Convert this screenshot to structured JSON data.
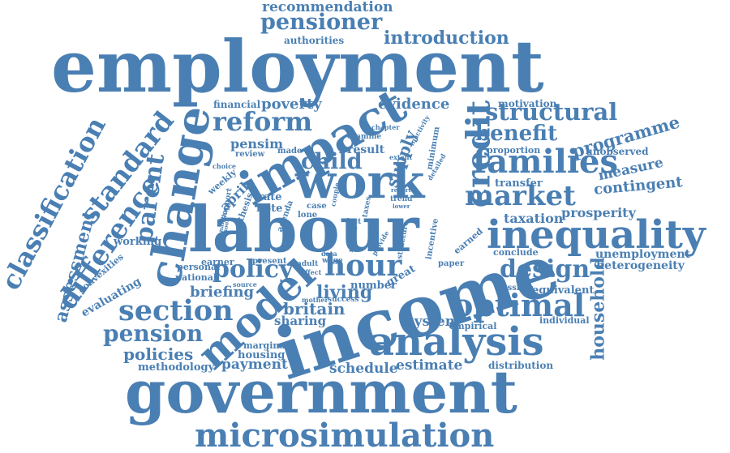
{
  "word_color": "#4a7fb3",
  "words": {
    "recommendation": "recommendation",
    "pensioner": "pensioner",
    "authorities": "authorities",
    "introduction": "introduction",
    "employment": "employment",
    "financial": "financial",
    "poverty": "poverty",
    "evidence": "evidence",
    "motivation": "motivation",
    "structural": "structural",
    "reform": "reform",
    "impact": "impact",
    "credit": "credit",
    "benefit": "benefit",
    "programme": "programme",
    "change": "change",
    "pensim": "pensim",
    "families": "families",
    "classification": "classification",
    "standard": "standard",
    "result": "result",
    "supply": "supply",
    "proportion": "proportion",
    "unobserved": "unobserved",
    "review": "review",
    "child": "child",
    "measure": "measure",
    "choice": "choice",
    "weekly": "weekly",
    "transfer": "transfer",
    "contingent": "contingent",
    "work": "work",
    "market": "market",
    "parent": "parent",
    "april": "april",
    "thesis": "thesis",
    "rate": "rate",
    "note": "note",
    "prosperity": "prosperity",
    "taxation": "taxation",
    "difference": "difference",
    "labour": "labour",
    "inequality": "inequality",
    "assessment": "assessment",
    "working": "working",
    "earned": "earned",
    "conclude": "conclude",
    "unemployment": "unemployment",
    "heterogeneity": "heterogeneity",
    "convexities": "convexities",
    "evaluating": "evaluating",
    "personal": "personal",
    "earner": "earner",
    "present": "present",
    "hour": "hour",
    "policy": "policy",
    "design": "design",
    "national": "national",
    "briefing": "briefing",
    "living": "living",
    "number": "number",
    "great": "great",
    "possible": "possible",
    "equivalent": "equivalent",
    "section": "section",
    "model": "model",
    "britain": "britain",
    "optimal": "optimal",
    "income": "income",
    "household": "household",
    "pension": "pension",
    "sharing": "sharing",
    "system": "system",
    "empirical": "empirical",
    "individual": "individual",
    "analysis": "analysis",
    "policies": "policies",
    "marginal": "marginal",
    "housing": "housing",
    "methodology": "methodology",
    "payment": "payment",
    "schedule": "schedule",
    "estimate": "estimate",
    "distribution": "distribution",
    "government": "government",
    "microsimulation": "microsimulation",
    "examine": "examine",
    "chapter": "chapter",
    "inactivity": "inactivity",
    "minimum": "minimum",
    "made": "made",
    "extent": "extent",
    "detailed": "detailed",
    "report": "report",
    "trend": "trend",
    "lower": "lower",
    "case": "case",
    "lone": "lone",
    "agenda": "agenda",
    "fact": "fact",
    "nation": "nation",
    "provide": "provide",
    "structure": "structure",
    "incentive": "incentive",
    "data": "data",
    "wage": "wage",
    "adult": "adult",
    "effect": "effect",
    "paper": "paper",
    "success": "success",
    "mother": "mother",
    "support": "support",
    "analytic": "analytic",
    "school": "school",
    "couple": "couple",
    "taxes": "taxes",
    "source": "source"
  }
}
